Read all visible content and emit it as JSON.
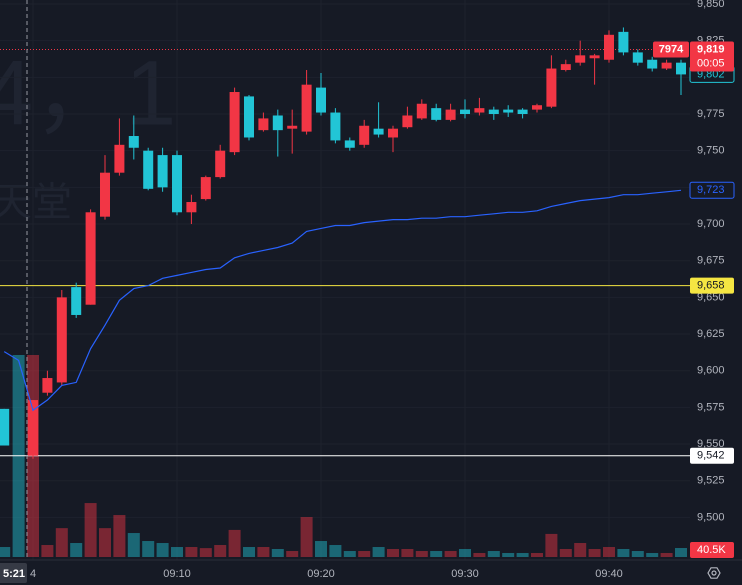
{
  "chart_data": {
    "type": "candlestick",
    "watermark": [
      "4，1",
      "天堂"
    ],
    "crosshair_label": "5:21",
    "categories": [
      "",
      null,
      "4",
      null,
      null,
      null,
      null,
      null,
      null,
      null,
      null,
      null,
      "09:10",
      null,
      null,
      null,
      null,
      null,
      null,
      null,
      null,
      null,
      "09:20",
      null,
      null,
      null,
      null,
      null,
      null,
      null,
      null,
      null,
      "09:30",
      null,
      null,
      null,
      null,
      null,
      null,
      null,
      null,
      null,
      "09:40",
      null,
      null,
      null,
      null,
      null
    ],
    "up_color": "#f23645",
    "down_color": "#22c5d6",
    "open": [
      9574,
      null,
      9542,
      9585,
      9592,
      9657,
      9645,
      9705,
      9735,
      9760,
      9750,
      9747,
      9747,
      9708,
      9717,
      9732,
      9749,
      9787,
      9764,
      9774,
      9765,
      9763,
      9793,
      9776,
      9757,
      9754,
      9765,
      9759,
      9766,
      9772,
      9779,
      9771,
      9778,
      9776,
      9778,
      9778,
      9778,
      9778,
      9780,
      9805,
      9810,
      9813,
      9812,
      9831,
      9817,
      9812,
      9806,
      9810
    ],
    "high": [
      9574,
      null,
      9580,
      9600,
      9655,
      9660,
      9710,
      9747,
      9772,
      9774,
      9752,
      9752,
      9750,
      9720,
      9733,
      9754,
      9793,
      9788,
      9776,
      9778,
      9778,
      9805,
      9803,
      9779,
      9759,
      9771,
      9783,
      9767,
      9780,
      9785,
      9782,
      9782,
      9785,
      9786,
      9780,
      9781,
      9779,
      9782,
      9815,
      9812,
      9825,
      9816,
      9832,
      9834,
      9819,
      9814,
      9812,
      9812
    ],
    "low": [
      9549,
      null,
      9540,
      9583,
      9590,
      9636,
      9645,
      9703,
      9733,
      9744,
      9723,
      9722,
      9706,
      9700,
      9716,
      9731,
      9747,
      9757,
      9763,
      9746,
      9748,
      9761,
      9774,
      9755,
      9750,
      9752,
      9759,
      9749,
      9765,
      9771,
      9770,
      9770,
      9772,
      9774,
      9771,
      9773,
      9772,
      9776,
      9779,
      9804,
      9808,
      9795,
      9810,
      9815,
      9808,
      9804,
      9805,
      9788
    ],
    "close": [
      9549,
      null,
      9580,
      9595,
      9650,
      9638,
      9708,
      9735,
      9754,
      9752,
      9724,
      9725,
      9708,
      9715,
      9732,
      9750,
      9790,
      9759,
      9772,
      9764,
      9767,
      9795,
      9776,
      9757,
      9752,
      9767,
      9761,
      9765,
      9774,
      9782,
      9771,
      9778,
      9775,
      9779,
      9775,
      9776,
      9775,
      9781,
      9806,
      9809,
      9815,
      9815,
      9829,
      9817,
      9810,
      9806,
      9810,
      9802
    ],
    "close_last_label": "9,802",
    "volume": [
      45000,
      910000,
      910000,
      54000,
      130000,
      63000,
      243000,
      130000,
      189000,
      108000,
      72000,
      63000,
      45000,
      45000,
      40000,
      54000,
      122000,
      45000,
      45000,
      36000,
      27000,
      180000,
      72000,
      54000,
      27000,
      27000,
      45000,
      36000,
      36000,
      27000,
      27000,
      27000,
      36000,
      18000,
      27000,
      18000,
      18000,
      18000,
      104000,
      36000,
      63000,
      36000,
      45000,
      36000,
      27000,
      18000,
      18000,
      40500
    ],
    "volume_last_label": "40.5K",
    "ma": {
      "color": "#2962ff",
      "values": [
        9613,
        9607,
        9573,
        9580,
        9590,
        9592,
        9615,
        9631,
        9648,
        9656,
        9658,
        9663,
        9665,
        9667,
        9669,
        9670,
        9677,
        9680,
        9682,
        9684,
        9687,
        9695,
        9697,
        9699,
        9699,
        9701,
        9702,
        9703,
        9703,
        9704,
        9704,
        9705,
        9705,
        9706,
        9707,
        9708,
        9708,
        9709,
        9712,
        9714,
        9716,
        9717,
        9718,
        9720,
        9720,
        9721,
        9722,
        9723
      ],
      "last_label": "9,723"
    },
    "price_lines": [
      {
        "value": 9658,
        "label": "9,658",
        "color": "#f5e642"
      },
      {
        "value": 9542,
        "label": "9,542",
        "color": "#ffffff"
      }
    ],
    "last_price": {
      "value": 9819,
      "label": "9,819",
      "volume_label": "7974",
      "countdown": "00:05"
    },
    "ylim": [
      9473,
      9850
    ],
    "yticks": [
      {
        "value": 9500,
        "label": "9,500"
      },
      {
        "value": 9525,
        "label": "9,525"
      },
      {
        "value": 9550,
        "label": "9,550"
      },
      {
        "value": 9575,
        "label": "9,575"
      },
      {
        "value": 9600,
        "label": "9,600"
      },
      {
        "value": 9625,
        "label": "9,625"
      },
      {
        "value": 9650,
        "label": "9,650"
      },
      {
        "value": 9675,
        "label": "9,675"
      },
      {
        "value": 9700,
        "label": "9,700"
      },
      {
        "value": 9725,
        "label": "9,725"
      },
      {
        "value": 9750,
        "label": "9,750"
      },
      {
        "value": 9775,
        "label": "9,775"
      },
      {
        "value": 9800,
        "label": "9,800"
      },
      {
        "value": 9825,
        "label": "9,825"
      },
      {
        "value": 9850,
        "label": "9,850"
      }
    ],
    "grid": true
  }
}
